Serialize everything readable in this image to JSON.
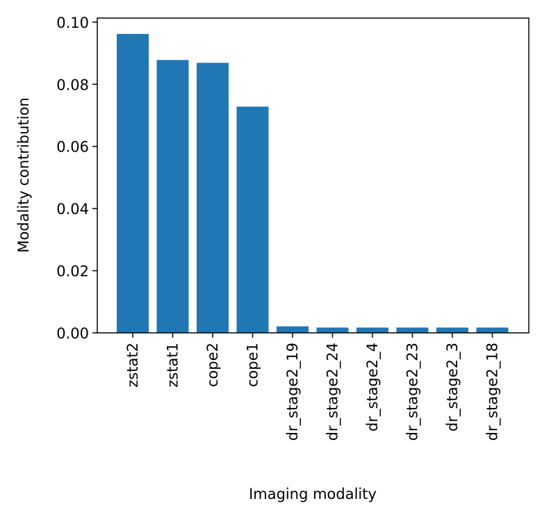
{
  "chart_data": {
    "type": "bar",
    "title": "",
    "xlabel": "Imaging modality",
    "ylabel": "Modality contribution",
    "categories": [
      "zstat2",
      "zstat1",
      "cope2",
      "cope1",
      "dr_stage2_19",
      "dr_stage2_24",
      "dr_stage2_4",
      "dr_stage2_23",
      "dr_stage2_3",
      "dr_stage2_18"
    ],
    "values": [
      0.0962,
      0.0878,
      0.0869,
      0.0728,
      0.0021,
      0.0017,
      0.0017,
      0.0017,
      0.0017,
      0.0017
    ],
    "ylim": [
      0,
      0.1013
    ],
    "yticks": [
      0.0,
      0.02,
      0.04,
      0.06,
      0.08,
      0.1
    ],
    "ytick_labels": [
      "0.00",
      "0.02",
      "0.04",
      "0.06",
      "0.08",
      "0.10"
    ],
    "bar_color": "#1f77b4",
    "grid": false,
    "legend": "none"
  }
}
